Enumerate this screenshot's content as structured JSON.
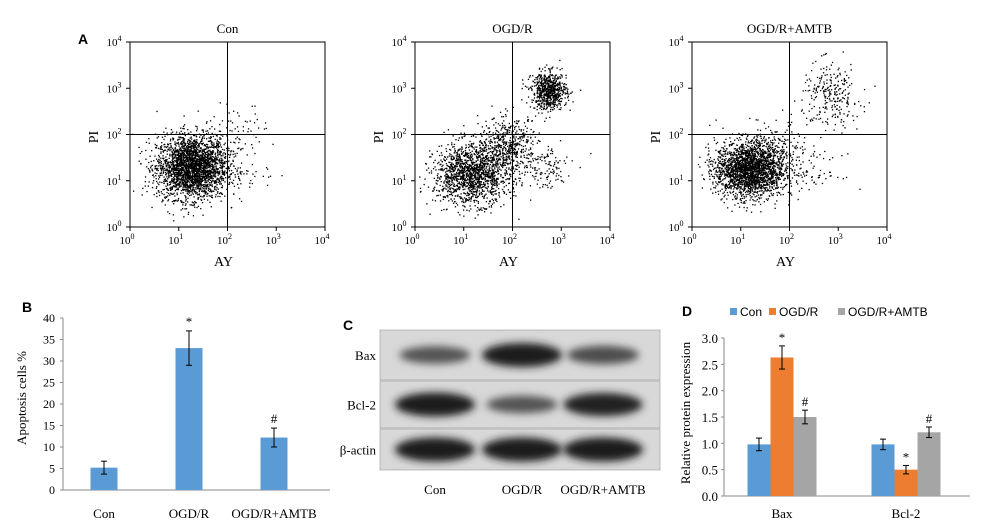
{
  "panels": {
    "a": {
      "label": "A",
      "plots": [
        {
          "title": "Con",
          "xlabel": "AY",
          "ylabel": "PI",
          "clusters": [
            {
              "cx": 18,
              "cy": 20,
              "sx": 0.36,
              "sy": 0.34,
              "n": 2600
            },
            {
              "cx": 60,
              "cy": 60,
              "sx": 0.3,
              "sy": 0.3,
              "n": 80
            },
            {
              "cx": 220,
              "cy": 140,
              "sx": 0.25,
              "sy": 0.25,
              "n": 40
            },
            {
              "cx": 250,
              "cy": 12,
              "sx": 0.3,
              "sy": 0.2,
              "n": 30
            }
          ]
        },
        {
          "title": "OGD/R",
          "xlabel": "AY",
          "ylabel": "PI",
          "clusters": [
            {
              "cx": 14,
              "cy": 14,
              "sx": 0.38,
              "sy": 0.32,
              "n": 1500
            },
            {
              "cx": 80,
              "cy": 60,
              "sx": 0.3,
              "sy": 0.3,
              "n": 500
            },
            {
              "cx": 550,
              "cy": 900,
              "sx": 0.18,
              "sy": 0.2,
              "n": 700
            },
            {
              "cx": 400,
              "cy": 20,
              "sx": 0.3,
              "sy": 0.25,
              "n": 120
            }
          ]
        },
        {
          "title": "OGD/R+AMTB",
          "xlabel": "AY",
          "ylabel": "PI",
          "clusters": [
            {
              "cx": 15,
              "cy": 18,
              "sx": 0.35,
              "sy": 0.3,
              "n": 2300
            },
            {
              "cx": 60,
              "cy": 50,
              "sx": 0.3,
              "sy": 0.3,
              "n": 150
            },
            {
              "cx": 700,
              "cy": 700,
              "sx": 0.3,
              "sy": 0.35,
              "n": 260
            },
            {
              "cx": 300,
              "cy": 15,
              "sx": 0.3,
              "sy": 0.2,
              "n": 60
            }
          ]
        }
      ],
      "ticks": [
        "10",
        "10",
        "10",
        "10",
        "10"
      ],
      "exponents": [
        "0",
        "1",
        "2",
        "3",
        "4"
      ]
    },
    "b": {
      "label": "B",
      "ylabel": "Apoptosis cells %",
      "yticks": [
        "0",
        "5",
        "10",
        "15",
        "20",
        "25",
        "30",
        "35",
        "40"
      ]
    },
    "c": {
      "label": "C",
      "rows": [
        {
          "label": "Bax",
          "intensity": [
            0.55,
            1.0,
            0.6
          ]
        },
        {
          "label": "Bcl-2",
          "intensity": [
            1.0,
            0.55,
            0.95
          ]
        },
        {
          "label": "β-actin",
          "intensity": [
            1.0,
            1.0,
            1.0
          ]
        }
      ],
      "lanes": [
        "Con",
        "OGD/R",
        "OGD/R+AMTB"
      ]
    },
    "d": {
      "label": "D",
      "ylabel": "Relative protein expression",
      "yticks": [
        "0.0",
        "0.5",
        "1.0",
        "1.5",
        "2.0",
        "2.5",
        "3.0"
      ]
    }
  },
  "chart_data": [
    {
      "type": "bar",
      "panel": "B",
      "categories": [
        "Con",
        "OGD/R",
        "OGD/R+AMTB"
      ],
      "values": [
        5.2,
        33,
        12.2
      ],
      "errors": [
        1.5,
        4,
        2.2
      ],
      "annotations": [
        "",
        "*",
        "#"
      ],
      "ylabel": "Apoptosis cells %",
      "ylim": [
        0,
        40
      ],
      "color": "#5b9bd5"
    },
    {
      "type": "bar",
      "panel": "D",
      "categories": [
        "Bax",
        "Bcl-2"
      ],
      "series": [
        {
          "name": "Con",
          "values": [
            0.98,
            0.98
          ],
          "errors": [
            0.12,
            0.1
          ],
          "annotations": [
            "",
            ""
          ],
          "color": "#5b9bd5"
        },
        {
          "name": "OGD/R",
          "values": [
            2.63,
            0.5
          ],
          "errors": [
            0.22,
            0.08
          ],
          "annotations": [
            "*",
            "*"
          ],
          "color": "#ed7d31"
        },
        {
          "name": "OGD/R+AMTB",
          "values": [
            1.5,
            1.21
          ],
          "errors": [
            0.13,
            0.1
          ],
          "annotations": [
            "#",
            "#"
          ],
          "color": "#a5a5a5"
        }
      ],
      "ylabel": "Relative protein expression",
      "ylim": [
        0,
        3.0
      ],
      "legend": "top"
    }
  ]
}
